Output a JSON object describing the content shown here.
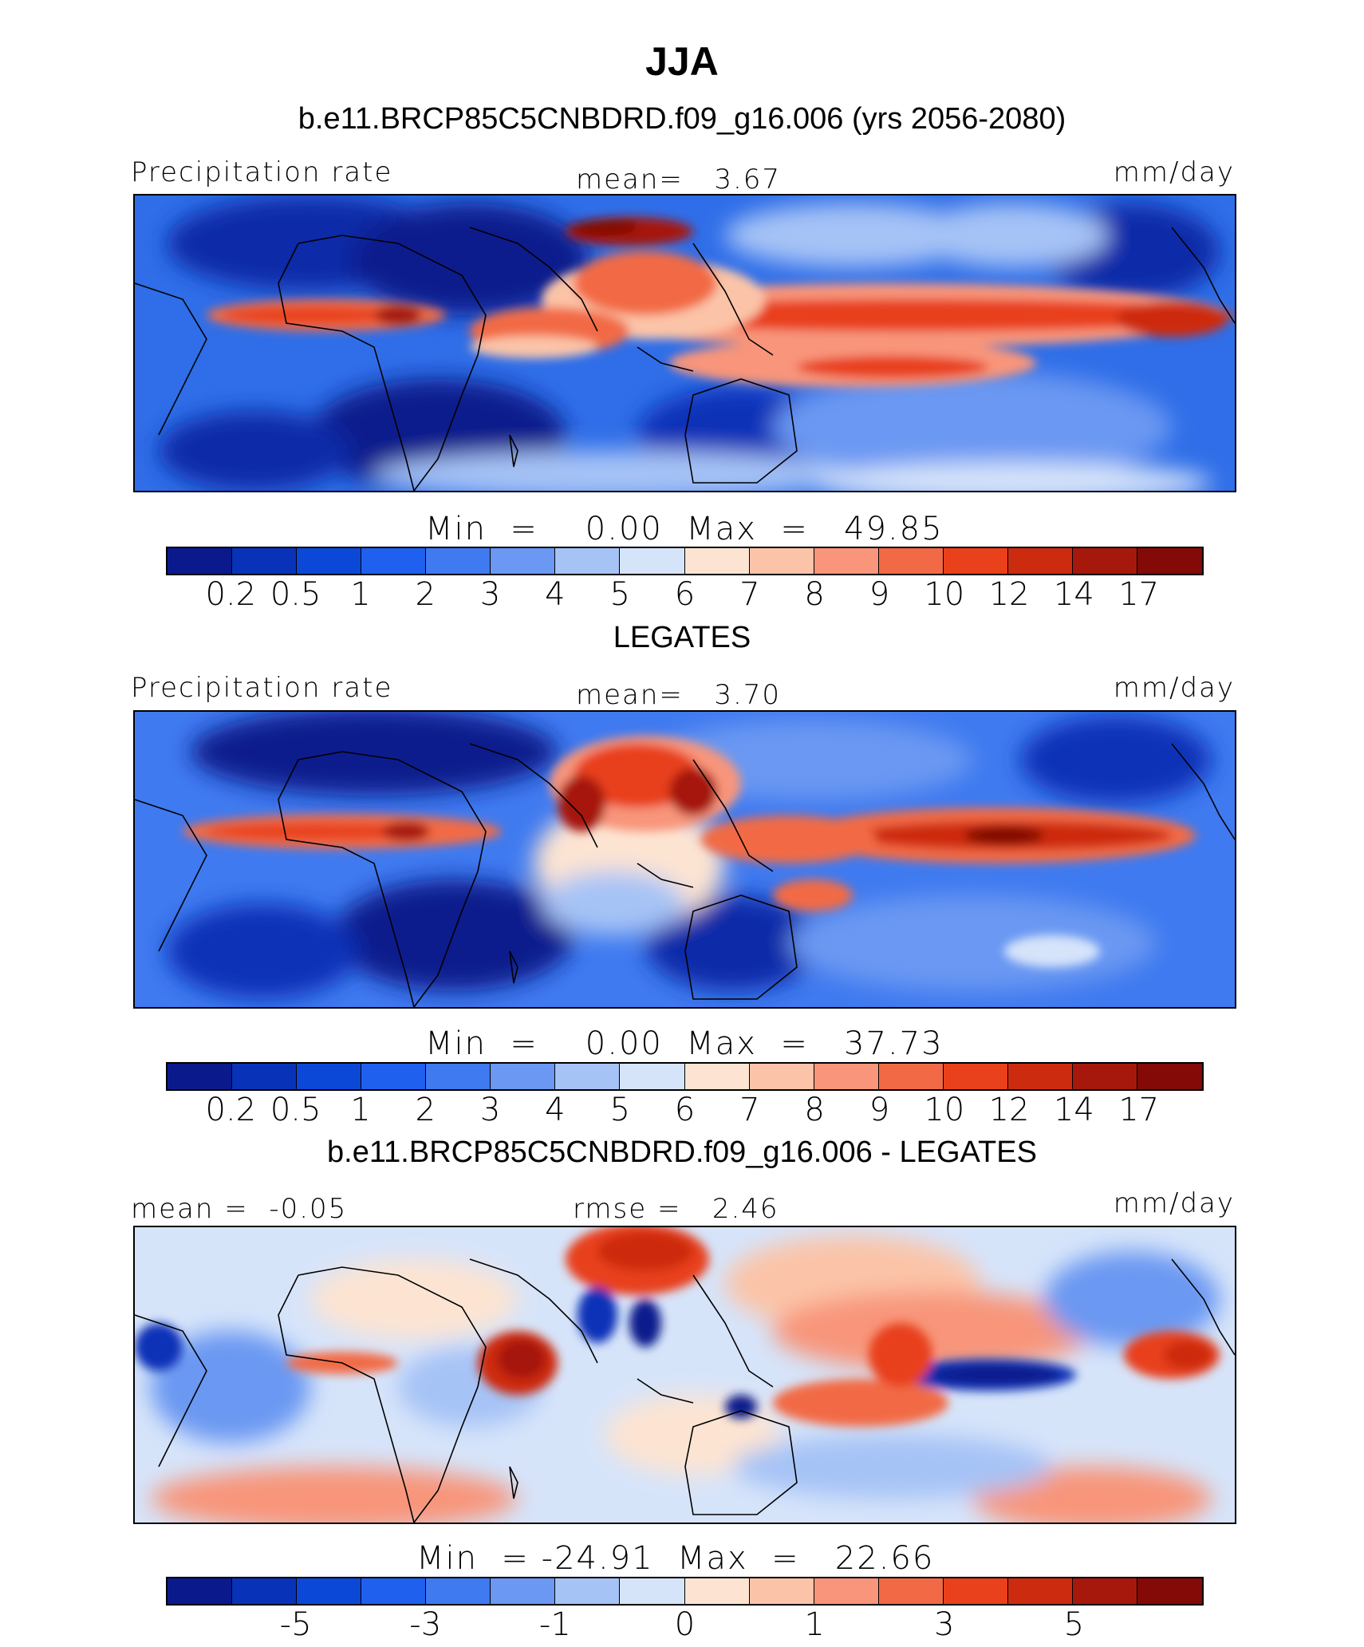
{
  "figure": {
    "season": "JJA",
    "case_title": "b.e11.BRCP85C5CNBDRD.f09_g16.006 (yrs 2056-2080)"
  },
  "chart_data": [
    {
      "type": "heatmap",
      "panel": "model",
      "left_label": "Precipitation rate",
      "center_label": "mean=   3.67",
      "right_label": "mm/day",
      "min_max": "Min  =    0.00  Max  =   49.85",
      "colorbar_levels": [
        "0.2",
        "0.5",
        "1",
        "2",
        "3",
        "4",
        "5",
        "6",
        "7",
        "8",
        "9",
        "10",
        "12",
        "14",
        "17"
      ],
      "colorbar_colors": [
        "#0a1a8c",
        "#0833b8",
        "#0b48d8",
        "#1f60ee",
        "#3f7af0",
        "#6a98f2",
        "#a6c3f6",
        "#d6e4fa",
        "#fde4d2",
        "#fbc4a8",
        "#f8957a",
        "#f26a45",
        "#e8411b",
        "#cd2b10",
        "#a6180c",
        "#830a06"
      ],
      "min": 0.0,
      "max": 49.85,
      "mean": 3.67,
      "units": "mm/day"
    },
    {
      "type": "heatmap",
      "panel": "observations",
      "subtitle": "LEGATES",
      "left_label": "Precipitation rate",
      "center_label": "mean=   3.70",
      "right_label": "mm/day",
      "min_max": "Min  =    0.00  Max  =   37.73",
      "colorbar_levels": [
        "0.2",
        "0.5",
        "1",
        "2",
        "3",
        "4",
        "5",
        "6",
        "7",
        "8",
        "9",
        "10",
        "12",
        "14",
        "17"
      ],
      "colorbar_colors": [
        "#0a1a8c",
        "#0833b8",
        "#0b48d8",
        "#1f60ee",
        "#3f7af0",
        "#6a98f2",
        "#a6c3f6",
        "#d6e4fa",
        "#fde4d2",
        "#fbc4a8",
        "#f8957a",
        "#f26a45",
        "#e8411b",
        "#cd2b10",
        "#a6180c",
        "#830a06"
      ],
      "min": 0.0,
      "max": 37.73,
      "mean": 3.7,
      "units": "mm/day"
    },
    {
      "type": "heatmap",
      "panel": "difference",
      "subtitle": "b.e11.BRCP85C5CNBDRD.f09_g16.006 - LEGATES",
      "left_label": "mean =  -0.05",
      "center_label": "rmse =   2.46",
      "right_label": "mm/day",
      "min_max": "Min  = -24.91  Max  =   22.66",
      "colorbar_levels": [
        "-5",
        "-3",
        "-1",
        "0",
        "1",
        "3",
        "5"
      ],
      "colorbar_colors": [
        "#0a1a8c",
        "#0833b8",
        "#0b48d8",
        "#1f60ee",
        "#3f7af0",
        "#6a98f2",
        "#a6c3f6",
        "#d6e4fa",
        "#fde4d2",
        "#fbc4a8",
        "#f8957a",
        "#f26a45",
        "#e8411b",
        "#cd2b10",
        "#a6180c",
        "#830a06"
      ],
      "min": -24.91,
      "max": 22.66,
      "mean": -0.05,
      "rmse": 2.46,
      "units": "mm/day"
    }
  ]
}
